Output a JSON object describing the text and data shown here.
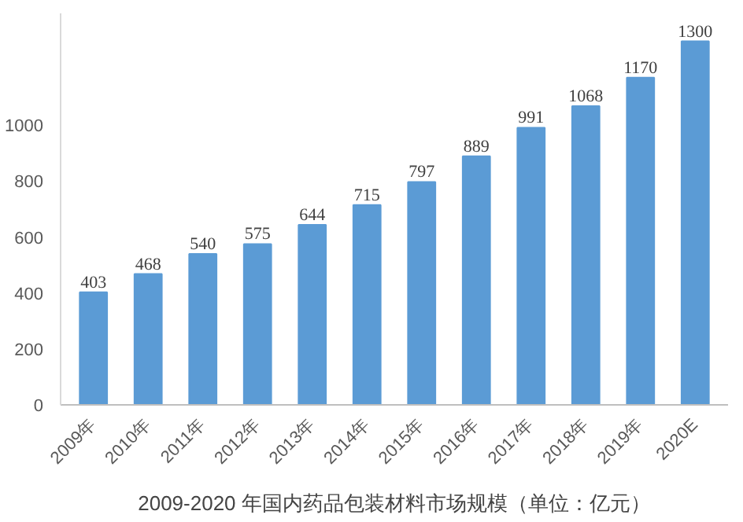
{
  "chart_data": {
    "type": "bar",
    "title": "2009-2020 年国内药品包装材料市场规模（单位：亿元）",
    "categories": [
      "2009年",
      "2010年",
      "2011年",
      "2012年",
      "2013年",
      "2014年",
      "2015年",
      "2016年",
      "2017年",
      "2018年",
      "2019年",
      "2020E"
    ],
    "values": [
      403,
      468,
      540,
      575,
      644,
      715,
      797,
      889,
      991,
      1068,
      1170,
      1300
    ],
    "color": "#5b9bd5",
    "ylim": [
      0,
      1400
    ],
    "yticks": [
      0,
      200,
      400,
      600,
      800,
      1000
    ],
    "data_labels": true,
    "grid": false
  }
}
